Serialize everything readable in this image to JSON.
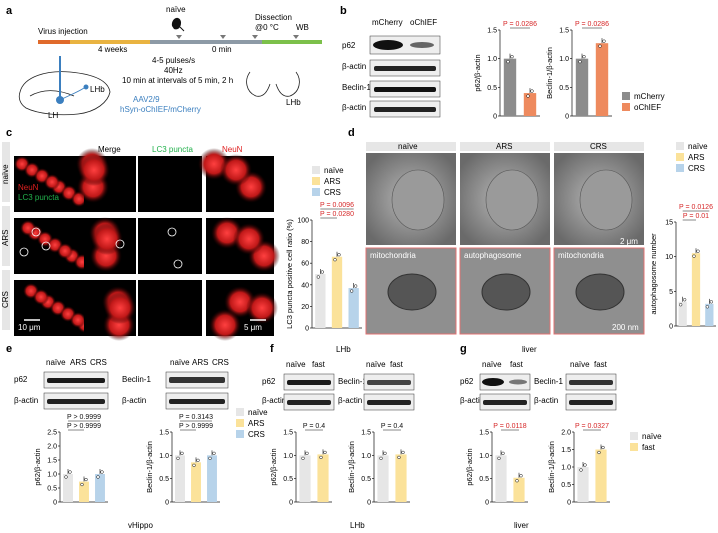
{
  "panels": {
    "a": {
      "letter": "a",
      "virus_injection": "Virus injection",
      "weeks": "4 weeks",
      "naive": "naïve",
      "zero_min": "0 min",
      "dissection_line1": "Dissection",
      "dissection_line2": "@0 °C",
      "wb": "WB",
      "pulses": "4-5 pulses/s",
      "freq": "40Hz",
      "protocol": "10 min at intervals of 5 min, 2 h",
      "lhb_brain": "LHb",
      "lhb_slice": "LHb",
      "lh": "LH",
      "aav": "AAV2/9",
      "construct": "hSyn-oChIEF/mCherry"
    },
    "b": {
      "letter": "b",
      "blot_col1": "mCherry",
      "blot_col2": "oChIEF",
      "rows": [
        "p62",
        "β-actin",
        "Beclin-1",
        "β-actin"
      ],
      "legend": [
        "mCherry",
        "oChIEF"
      ],
      "legend_colors": [
        "#8c8c8c",
        "#ee8a5e"
      ]
    },
    "c": {
      "letter": "c",
      "col_labels": [
        "Merge",
        "LC3 puncta",
        "NeuN"
      ],
      "row_labels": [
        "naïve",
        "ARS",
        "CRS"
      ],
      "overlay_neun": "NeuN",
      "overlay_lc3": "LC3 puncta",
      "scale_big": "10 μm",
      "scale_small": "5 μm"
    },
    "d": {
      "letter": "d",
      "col_labels": [
        "naïve",
        "ARS",
        "CRS"
      ],
      "bottom_labels": [
        "mitochondria",
        "autophagosome",
        "mitochondria"
      ],
      "scale_top": "2 μm",
      "scale_bottom": "200 nm",
      "legend": [
        "naïve",
        "ARS",
        "CRS"
      ],
      "legend_colors": [
        "#e6e6e6",
        "#fbe29a",
        "#b7d3ea"
      ]
    },
    "e": {
      "letter": "e",
      "blot1_cols": [
        "naïve",
        "ARS",
        "CRS"
      ],
      "blot2_cols": [
        "naïve",
        "ARS",
        "CRS"
      ],
      "blot1_rows": [
        "p62",
        "β-actin"
      ],
      "blot2_rows": [
        "Beclin-1",
        "β-actin"
      ],
      "legend": [
        "naïve",
        "ARS",
        "CRS"
      ],
      "region": "vHippo"
    },
    "f": {
      "letter": "f",
      "region_top": "LHb",
      "cols": [
        "naïve",
        "fast"
      ],
      "blot1_rows": [
        "p62",
        "β-actin"
      ],
      "blot2_rows": [
        "Beclin-1",
        "β-actin"
      ],
      "region": "LHb"
    },
    "g": {
      "letter": "g",
      "region_top": "liver",
      "cols": [
        "naïve",
        "fast"
      ],
      "blot1_rows": [
        "p62",
        "β-actin"
      ],
      "blot2_rows": [
        "Beclin-1",
        "β-actin"
      ],
      "legend": [
        "naïve",
        "fast"
      ],
      "region": "liver"
    }
  },
  "colors": {
    "naive": "#e6e6e6",
    "ars": "#fbe29a",
    "crs": "#b7d3ea",
    "fast": "#fbe29a",
    "mcherry": "#8c8c8c",
    "ochief": "#ee8a5e",
    "pval": "#d62728"
  },
  "chart_data": [
    {
      "id": "b-p62",
      "type": "bar",
      "categories": [
        "mCherry",
        "oChIEF"
      ],
      "values": [
        1.0,
        0.4
      ],
      "ylabel": "p62/β-actin",
      "ylim": [
        0,
        1.5
      ],
      "yticks": [
        "0",
        "0.5",
        "1.0",
        "1.5"
      ],
      "annotation": "P = 0.0286"
    },
    {
      "id": "b-beclin",
      "type": "bar",
      "categories": [
        "mCherry",
        "oChIEF"
      ],
      "values": [
        1.0,
        1.27
      ],
      "ylabel": "Beclin-1/β-actin",
      "ylim": [
        0,
        1.5
      ],
      "yticks": [
        "0",
        "0.5",
        "1.0",
        "1.5"
      ],
      "annotation": "P = 0.0286"
    },
    {
      "id": "c-lc3",
      "type": "bar",
      "categories": [
        "naïve",
        "ARS",
        "CRS"
      ],
      "values": [
        50,
        66,
        37
      ],
      "ylabel": "LC3 puncta positive cell ratio (%)",
      "ylim": [
        0,
        100
      ],
      "yticks": [
        "0",
        "20",
        "40",
        "60",
        "80",
        "100"
      ],
      "annotations": [
        "P = 0.0280",
        "P = 0.0096"
      ]
    },
    {
      "id": "d-autophagosome",
      "type": "bar",
      "categories": [
        "naïve",
        "ARS",
        "CRS"
      ],
      "values": [
        3.5,
        10.5,
        3.2
      ],
      "ylabel": "autophagosome number",
      "ylim": [
        0,
        15
      ],
      "yticks": [
        "0",
        "5",
        "10",
        "15"
      ],
      "annotations": [
        "P = 0.01",
        "P = 0.0126"
      ]
    },
    {
      "id": "e-p62",
      "type": "bar",
      "categories": [
        "naïve",
        "ARS",
        "CRS"
      ],
      "values": [
        1.0,
        0.73,
        1.0
      ],
      "ylabel": "p62/β-actin",
      "ylim": [
        0,
        2.5
      ],
      "yticks": [
        "0",
        "0.5",
        "1.0",
        "1.5",
        "2.0",
        "2.5"
      ],
      "annotations": [
        "P > 0.9999",
        "P > 0.9999"
      ]
    },
    {
      "id": "e-beclin",
      "type": "bar",
      "categories": [
        "naïve",
        "ARS",
        "CRS"
      ],
      "values": [
        1.0,
        0.85,
        1.0
      ],
      "ylabel": "Beclin-1/β-actin",
      "ylim": [
        0,
        1.5
      ],
      "yticks": [
        "0",
        "0.5",
        "1.0",
        "1.5"
      ],
      "annotations": [
        "P > 0.9999",
        "P = 0.3143"
      ]
    },
    {
      "id": "f-p62",
      "type": "bar",
      "categories": [
        "naïve",
        "fast"
      ],
      "values": [
        1.0,
        1.02
      ],
      "ylabel": "p62/β-actin",
      "ylim": [
        0,
        1.5
      ],
      "yticks": [
        "0",
        "0.5",
        "1.0",
        "1.5"
      ],
      "annotation": "P = 0.4"
    },
    {
      "id": "f-beclin",
      "type": "bar",
      "categories": [
        "naïve",
        "fast"
      ],
      "values": [
        1.0,
        1.02
      ],
      "ylabel": "Beclin-1/β-actin",
      "ylim": [
        0,
        1.5
      ],
      "yticks": [
        "0",
        "0.5",
        "1.0",
        "1.5"
      ],
      "annotation": "P = 0.4"
    },
    {
      "id": "g-p62",
      "type": "bar",
      "categories": [
        "naïve",
        "fast"
      ],
      "values": [
        1.0,
        0.52
      ],
      "ylabel": "p62/β-actin",
      "ylim": [
        0,
        1.5
      ],
      "yticks": [
        "0",
        "0.5",
        "1.0",
        "1.5"
      ],
      "annotation": "P = 0.0118"
    },
    {
      "id": "g-beclin",
      "type": "bar",
      "categories": [
        "naïve",
        "fast"
      ],
      "values": [
        1.0,
        1.5
      ],
      "ylabel": "Beclin-1/β-actin",
      "ylim": [
        0,
        2.0
      ],
      "yticks": [
        "0",
        "0.5",
        "1.0",
        "1.5",
        "2.0"
      ],
      "annotation": "P = 0.0327"
    }
  ]
}
